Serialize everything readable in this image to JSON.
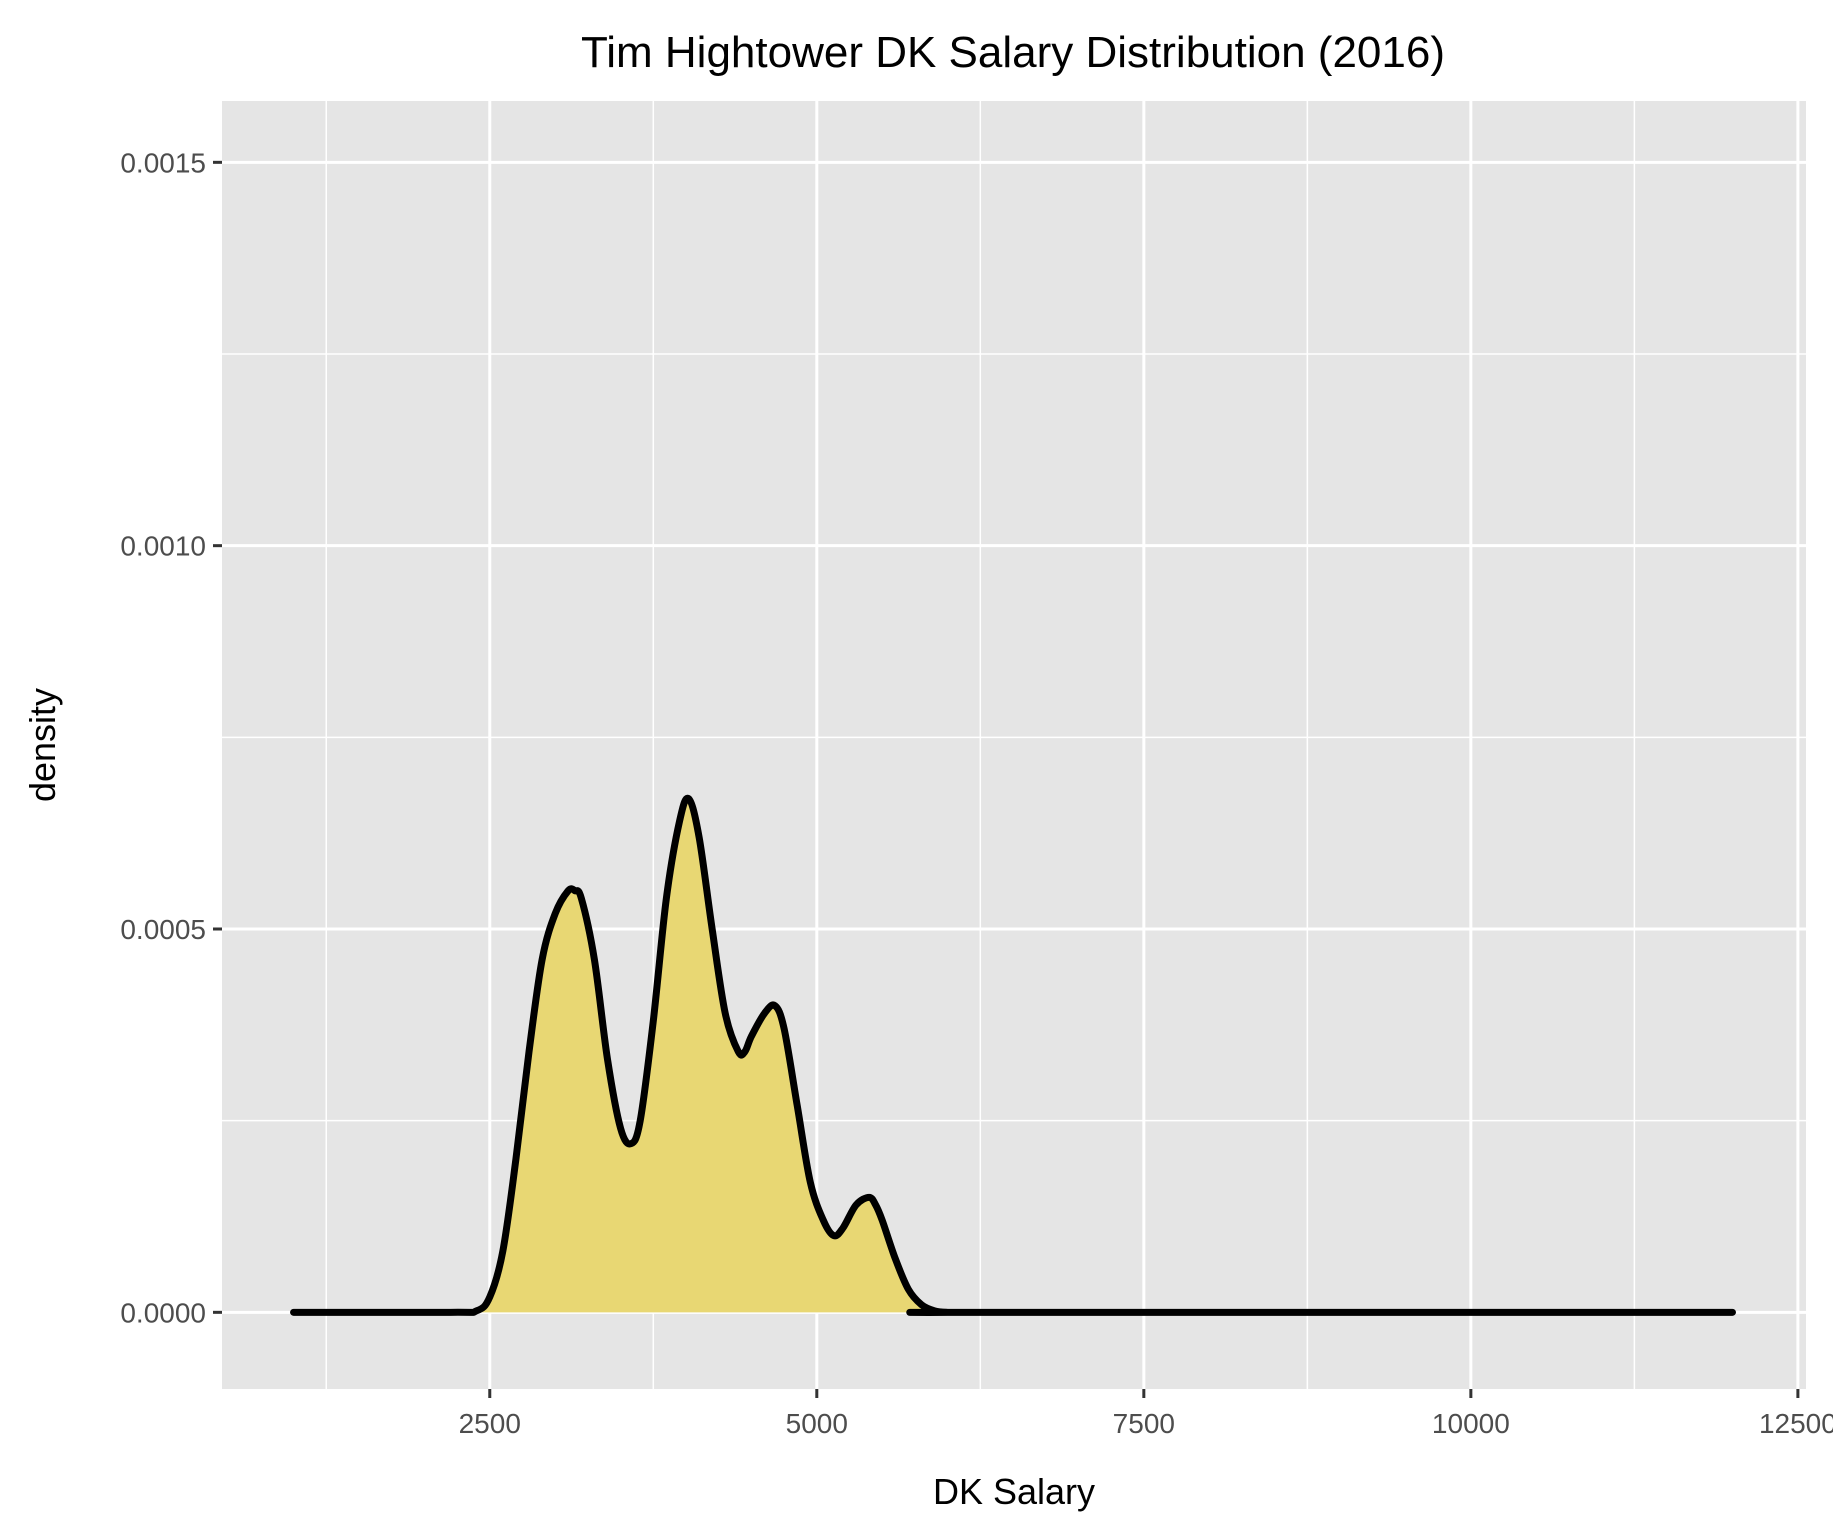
{
  "chart_data": {
    "type": "area",
    "title": "Tim Hightower DK Salary Distribution (2016)",
    "xlabel": "DK Salary",
    "ylabel": "density",
    "xlim": [
      453,
      12562
    ],
    "ylim": [
      -0.0001,
      0.00158
    ],
    "x_ticks": [
      2500,
      5000,
      7500,
      10000,
      12500
    ],
    "x_tick_labels": [
      "2500",
      "5000",
      "7500",
      "10000",
      "12500"
    ],
    "y_ticks": [
      0.0,
      0.0005,
      0.001,
      0.0015
    ],
    "y_tick_labels": [
      "0.0000",
      "0.0005",
      "0.0010",
      "0.0015"
    ],
    "grid": true,
    "background_color": "#e5e5e5",
    "fill_color": "#e8d773",
    "line_color": "#000000",
    "series": [
      {
        "x": [
          1000,
          2200,
          2400,
          2500,
          2600,
          2700,
          2800,
          2900,
          3000,
          3100,
          3150,
          3200,
          3300,
          3400,
          3500,
          3580,
          3650,
          3750,
          3850,
          3950,
          4020,
          4100,
          4200,
          4300,
          4400,
          4450,
          4500,
          4600,
          4680,
          4750,
          4850,
          4950,
          5050,
          5130,
          5200,
          5300,
          5400,
          5450,
          5500,
          5600,
          5700,
          5800,
          5900,
          6000,
          6200,
          12000
        ],
        "y": [
          0.0,
          0.0,
          2e-06,
          2e-05,
          8e-05,
          0.0002,
          0.00034,
          0.00046,
          0.00052,
          0.00055,
          0.00055,
          0.00054,
          0.00046,
          0.00033,
          0.00024,
          0.00022,
          0.00025,
          0.00038,
          0.00054,
          0.00064,
          0.00067,
          0.00062,
          0.0005,
          0.00039,
          0.00034,
          0.00034,
          0.00036,
          0.00039,
          0.0004,
          0.00037,
          0.00027,
          0.00017,
          0.00012,
          0.0001,
          0.00011,
          0.00014,
          0.00015,
          0.00014,
          0.00012,
          7e-05,
          3e-05,
          1e-05,
          2e-06,
          0.0,
          0.0,
          0.0
        ]
      }
    ]
  }
}
